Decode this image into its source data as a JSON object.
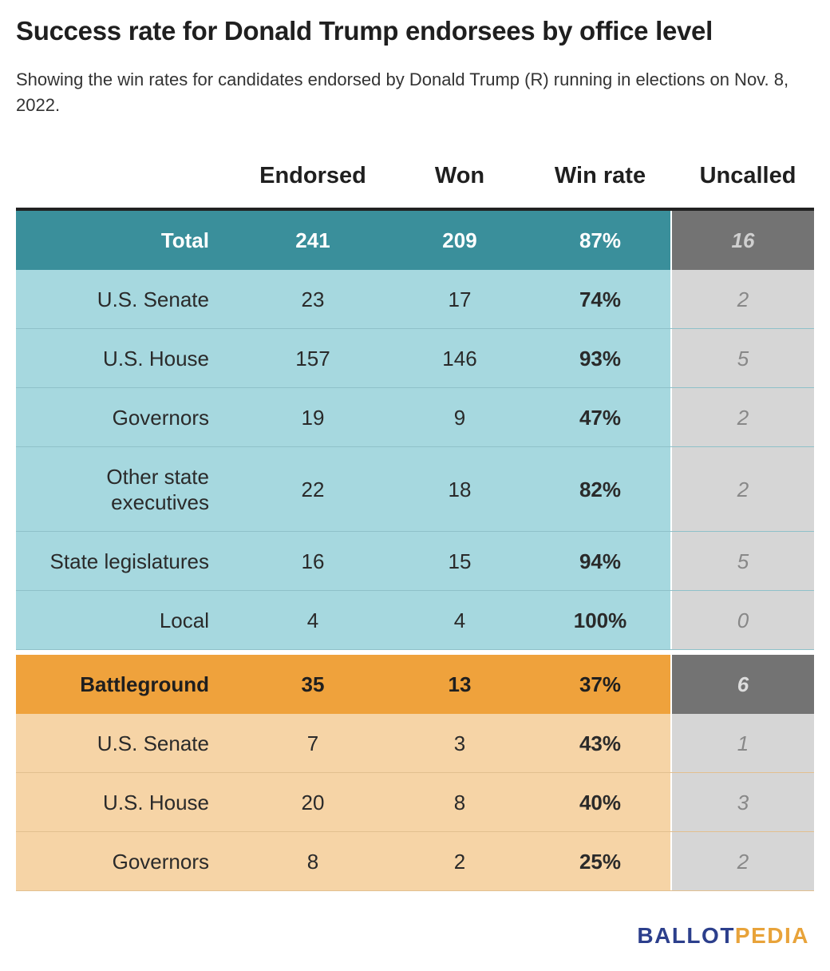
{
  "title": "Success rate for Donald Trump endorsees by office level",
  "subtitle": "Showing the win rates for candidates endorsed by Donald Trump (R) running in elections on Nov. 8, 2022.",
  "logo": {
    "part1": "BALLOT",
    "part2": "PEDIA"
  },
  "colors": {
    "total_bg": "#3a8f9b",
    "teal_bg": "#a6d8df",
    "battleground_bg": "#efa23c",
    "peach_bg": "#f6d4a6",
    "uncalled_dark": "#737373",
    "uncalled_light": "#d6d6d6"
  },
  "chart_data": {
    "type": "table",
    "title": "Success rate for Donald Trump endorsees by office level",
    "subtitle": "Showing the win rates for candidates endorsed by Donald Trump (R) running in elections on Nov. 8, 2022.",
    "columns": [
      "",
      "Endorsed",
      "Won",
      "Win rate",
      "Uncalled"
    ],
    "rows": [
      {
        "label": "Total",
        "endorsed": "241",
        "won": "209",
        "win_rate": "87%",
        "uncalled": "16",
        "style": "total"
      },
      {
        "label": "U.S. Senate",
        "endorsed": "23",
        "won": "17",
        "win_rate": "74%",
        "uncalled": "2",
        "style": "teal"
      },
      {
        "label": "U.S. House",
        "endorsed": "157",
        "won": "146",
        "win_rate": "93%",
        "uncalled": "5",
        "style": "teal"
      },
      {
        "label": "Governors",
        "endorsed": "19",
        "won": "9",
        "win_rate": "47%",
        "uncalled": "2",
        "style": "teal"
      },
      {
        "label": "Other state executives",
        "endorsed": "22",
        "won": "18",
        "win_rate": "82%",
        "uncalled": "2",
        "style": "teal"
      },
      {
        "label": "State legislatures",
        "endorsed": "16",
        "won": "15",
        "win_rate": "94%",
        "uncalled": "5",
        "style": "teal"
      },
      {
        "label": "Local",
        "endorsed": "4",
        "won": "4",
        "win_rate": "100%",
        "uncalled": "0",
        "style": "teal"
      },
      {
        "label": "Battleground",
        "endorsed": "35",
        "won": "13",
        "win_rate": "37%",
        "uncalled": "6",
        "style": "bat"
      },
      {
        "label": "U.S. Senate",
        "endorsed": "7",
        "won": "3",
        "win_rate": "43%",
        "uncalled": "1",
        "style": "peach"
      },
      {
        "label": "U.S. House",
        "endorsed": "20",
        "won": "8",
        "win_rate": "40%",
        "uncalled": "3",
        "style": "peach"
      },
      {
        "label": "Governors",
        "endorsed": "8",
        "won": "2",
        "win_rate": "25%",
        "uncalled": "2",
        "style": "peach"
      }
    ]
  }
}
